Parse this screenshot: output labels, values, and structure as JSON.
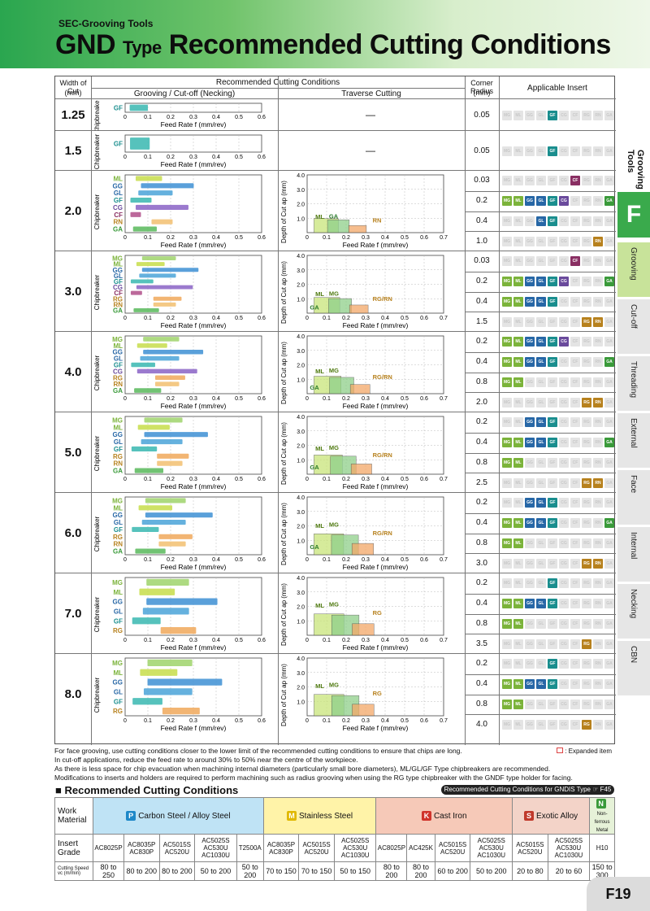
{
  "header": {
    "series": "SEC-Grooving Tools",
    "title_main": "GND",
    "title_type": "Type",
    "title_rest": "Recommended Cutting Conditions"
  },
  "side_tabs": {
    "section": "Grooving Tools",
    "letter": "F",
    "items": [
      "Grooving",
      "Cut-off",
      "Threading",
      "External",
      "Face",
      "Internal",
      "Necking",
      "CBN"
    ]
  },
  "table_head": {
    "width_of_cut": "Width of Cut",
    "mm": "(mm)",
    "recommended": "Recommended Cutting Conditions",
    "grooving": "Grooving / Cut-off (Necking)",
    "traverse": "Traverse Cutting",
    "corner_radius": "Corner Radius",
    "corner_mm": "(mm)",
    "applicable": "Applicable Insert"
  },
  "axis": {
    "chipbreaker": "Chipbreaker",
    "feed_label": "Feed Rate f (mm/rev)",
    "doc_label": "Depth of Cut ap (mm)",
    "feed_ticks": [
      "0",
      "0.1",
      "0.2",
      "0.3",
      "0.4",
      "0.5",
      "0.6"
    ],
    "trav_x_ticks": [
      "0",
      "0.1",
      "0.2",
      "0.3",
      "0.4",
      "0.5",
      "0.6",
      "0.7"
    ],
    "trav_y_ticks": [
      "1.0",
      "2.0",
      "3.0",
      "4.0"
    ]
  },
  "insert_columns": [
    "MG",
    "ML",
    "GG",
    "GL",
    "GF",
    "CG",
    "CF",
    "RG",
    "RN",
    "GA"
  ],
  "insert_colors": {
    "MG": "#7bb33a",
    "ML": "#7bb33a",
    "GG": "#2767a6",
    "GL": "#2767a6",
    "GF": "#1a8e8e",
    "CG": "#6a4a9c",
    "CF": "#8a2f63",
    "RG": "#b7811d",
    "RN": "#b7811d",
    "GA": "#3a9a3a"
  },
  "rows": [
    {
      "width": "1.25",
      "traverse": "—",
      "chip": [
        "GF"
      ],
      "radii": [
        {
          "r": "0.05",
          "ins": [
            "GF"
          ]
        }
      ]
    },
    {
      "width": "1.5",
      "traverse": "—",
      "chip": [
        "GF"
      ],
      "radii": [
        {
          "r": "0.05",
          "ins": [
            "GF"
          ]
        }
      ]
    },
    {
      "width": "2.0",
      "chip": [
        "ML",
        "GG",
        "GL",
        "GF",
        "CG",
        "CF",
        "RN",
        "GA"
      ],
      "trav": [
        "ML",
        "GA",
        "RN"
      ],
      "radii": [
        {
          "r": "0.03",
          "ins": [
            "CF"
          ]
        },
        {
          "r": "0.2",
          "ins": [
            "MG",
            "ML",
            "GG",
            "GL",
            "GF",
            "CG",
            "GA"
          ]
        },
        {
          "r": "0.4",
          "ins": [
            "GL",
            "GF"
          ]
        },
        {
          "r": "1.0",
          "ins": [
            "RN"
          ]
        }
      ]
    },
    {
      "width": "3.0",
      "chip": [
        "MG",
        "ML",
        "GG",
        "GL",
        "GF",
        "CG",
        "CF",
        "RG",
        "RN",
        "GA"
      ],
      "trav": [
        "ML",
        "MG",
        "RG/RN",
        "GA"
      ],
      "radii": [
        {
          "r": "0.03",
          "ins": [
            "CF"
          ]
        },
        {
          "r": "0.2",
          "ins": [
            "MG",
            "ML",
            "GG",
            "GL",
            "GF",
            "CG",
            "GA"
          ]
        },
        {
          "r": "0.4",
          "ins": [
            "MG",
            "ML",
            "GG",
            "GL",
            "GF"
          ]
        },
        {
          "r": "1.5",
          "ins": [
            "RG",
            "RN"
          ]
        }
      ]
    },
    {
      "width": "4.0",
      "chip": [
        "MG",
        "ML",
        "GG",
        "GL",
        "GF",
        "CG",
        "RG",
        "RN",
        "GA"
      ],
      "trav": [
        "ML",
        "MG",
        "RG/RN",
        "GA"
      ],
      "radii": [
        {
          "r": "0.2",
          "ins": [
            "MG",
            "ML",
            "GG",
            "GL",
            "GF",
            "CG"
          ]
        },
        {
          "r": "0.4",
          "ins": [
            "MG",
            "ML",
            "GG",
            "GL",
            "GF",
            "GA"
          ]
        },
        {
          "r": "0.8",
          "ins": [
            "MG",
            "ML"
          ]
        },
        {
          "r": "2.0",
          "ins": [
            "RG",
            "RN"
          ]
        }
      ]
    },
    {
      "width": "5.0",
      "chip": [
        "MG",
        "ML",
        "GG",
        "GL",
        "GF",
        "RG",
        "RN",
        "GA"
      ],
      "trav": [
        "ML",
        "MG",
        "RG/RN",
        "GA"
      ],
      "radii": [
        {
          "r": "0.2",
          "ins": [
            "GG",
            "GL",
            "GF"
          ]
        },
        {
          "r": "0.4",
          "ins": [
            "MG",
            "ML",
            "GG",
            "GL",
            "GF",
            "GA"
          ]
        },
        {
          "r": "0.8",
          "ins": [
            "MG",
            "ML"
          ]
        },
        {
          "r": "2.5",
          "ins": [
            "RG",
            "RN"
          ]
        }
      ]
    },
    {
      "width": "6.0",
      "chip": [
        "MG",
        "ML",
        "GG",
        "GL",
        "GF",
        "RG",
        "RN",
        "GA"
      ],
      "trav": [
        "ML",
        "MG",
        "RG/RN",
        "GA"
      ],
      "radii": [
        {
          "r": "0.2",
          "ins": [
            "GG",
            "GL",
            "GF"
          ]
        },
        {
          "r": "0.4",
          "ins": [
            "MG",
            "ML",
            "GG",
            "GL",
            "GF",
            "GA"
          ]
        },
        {
          "r": "0.8",
          "ins": [
            "MG",
            "ML"
          ]
        },
        {
          "r": "3.0",
          "ins": [
            "RG",
            "RN"
          ]
        }
      ]
    },
    {
      "width": "7.0",
      "chip": [
        "MG",
        "ML",
        "GG",
        "GL",
        "GF",
        "RG"
      ],
      "trav": [
        "ML",
        "MG",
        "RG"
      ],
      "radii": [
        {
          "r": "0.2",
          "ins": [
            "GF"
          ]
        },
        {
          "r": "0.4",
          "ins": [
            "MG",
            "ML",
            "GG",
            "GL",
            "GF"
          ]
        },
        {
          "r": "0.8",
          "ins": [
            "MG",
            "ML"
          ]
        },
        {
          "r": "3.5",
          "ins": [
            "RG"
          ]
        }
      ]
    },
    {
      "width": "8.0",
      "chip": [
        "MG",
        "ML",
        "GG",
        "GL",
        "GF",
        "RG"
      ],
      "trav": [
        "ML",
        "MG",
        "RG"
      ],
      "radii": [
        {
          "r": "0.2",
          "ins": [
            "GF"
          ]
        },
        {
          "r": "0.4",
          "ins": [
            "MG",
            "ML",
            "GG",
            "GL",
            "GF"
          ]
        },
        {
          "r": "0.8",
          "ins": [
            "MG",
            "ML"
          ]
        },
        {
          "r": "4.0",
          "ins": [
            "RG"
          ]
        }
      ]
    }
  ],
  "notes": [
    "For face grooving, use cutting conditions closer to the lower limit of the recommended cutting conditions to ensure that chips are long.",
    "In cut-off applications, reduce the feed rate to around 30% to 50% near the centre of the workpiece.",
    "As there is less space for chip evacuation when machining internal diameters (particularly small bore diameters), ML/GL/GF Type chipbreakers are recommended.",
    "Modifications to inserts and holders are required to perform machining such as radius grooving when using the RG type chipbreaker with the GNDF type holder for facing."
  ],
  "expanded_item": ": Expanded item",
  "rc": {
    "title": "Recommended Cutting Conditions",
    "gndis": "Recommended Cutting Conditions for GNDIS Type ☞ F45",
    "work_material": "Work Material",
    "insert_grade": "Insert Grade",
    "speed": "Cutting Speed vc (m/min)",
    "groups": [
      {
        "code": "P",
        "name": "Carbon Steel / Alloy Steel",
        "color": "#1e88c8",
        "cls": "p",
        "grades": [
          "AC8025P",
          "AC8035P AC830P",
          "AC5015S AC520U",
          "AC5025S AC530U AC1030U",
          "T2500A"
        ],
        "speeds": [
          "80 to 250",
          "80 to 200",
          "80 to 200",
          "50 to 200",
          "50 to 200"
        ]
      },
      {
        "code": "M",
        "name": "Stainless Steel",
        "color": "#e0b800",
        "cls": "m",
        "grades": [
          "AC8035P AC830P",
          "AC5015S AC520U",
          "AC5025S AC530U AC1030U"
        ],
        "speeds": [
          "70 to 150",
          "70 to 150",
          "50 to 150"
        ]
      },
      {
        "code": "K",
        "name": "Cast Iron",
        "color": "#d0342c",
        "cls": "k",
        "grades": [
          "AC8025P",
          "AC425K",
          "AC5015S AC520U",
          "AC5025S AC530U AC1030U"
        ],
        "speeds": [
          "80 to 200",
          "80 to 200",
          "60 to 200",
          "50 to 200"
        ]
      },
      {
        "code": "S",
        "name": "Exotic Alloy",
        "color": "#c0392b",
        "cls": "s",
        "grades": [
          "AC5015S AC520U",
          "AC5025S AC530U AC1030U"
        ],
        "speeds": [
          "20 to 80",
          "20 to 60"
        ]
      },
      {
        "code": "N",
        "name": "Non-ferrous Metal",
        "color": "#3a9a3a",
        "cls": "n",
        "grades": [
          "H10"
        ],
        "speeds": [
          "150 to 300"
        ]
      }
    ]
  },
  "page": "F19"
}
